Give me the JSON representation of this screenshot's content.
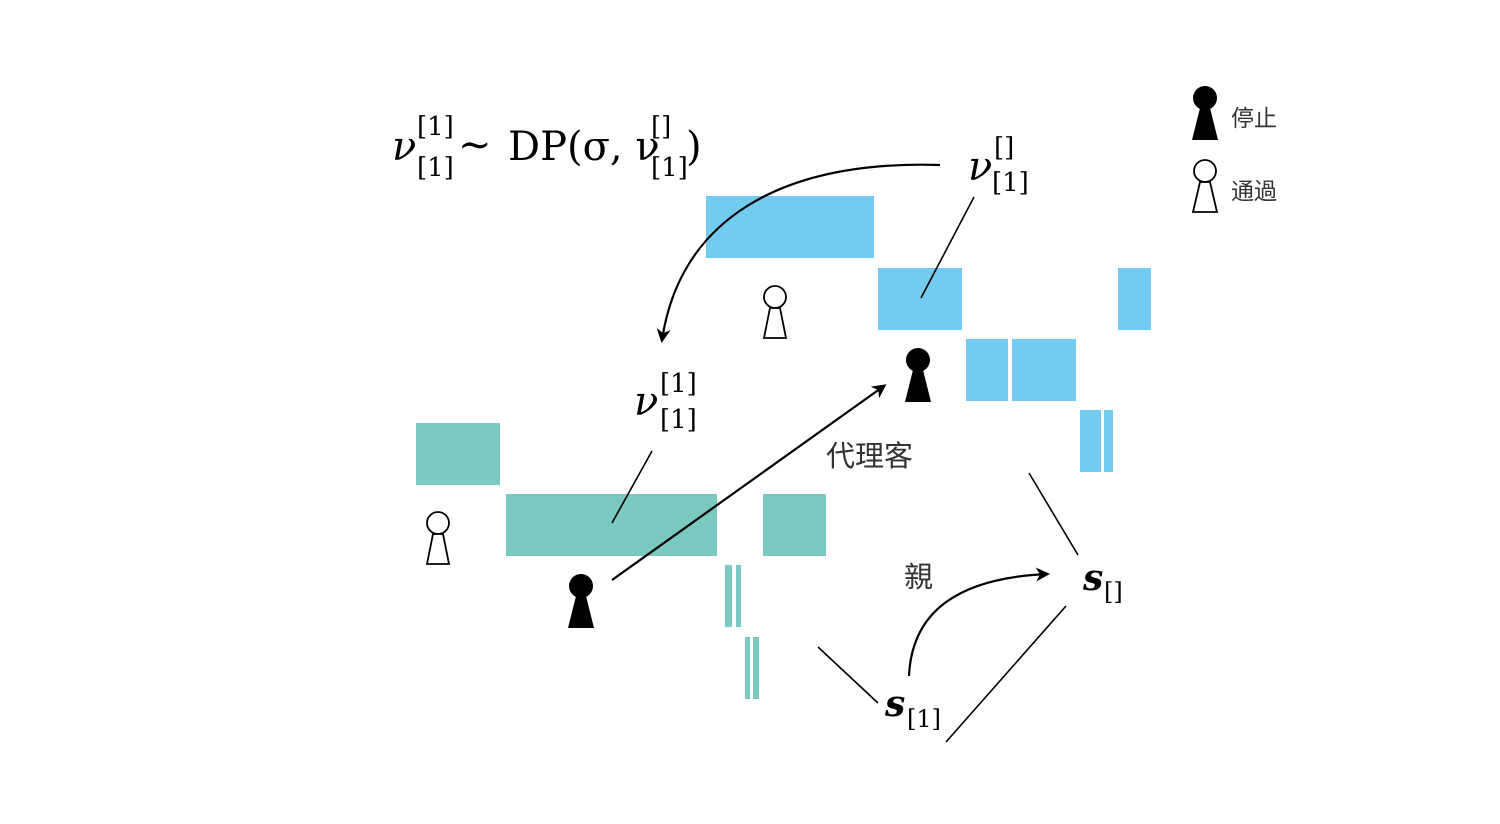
{
  "colors": {
    "blue": "#74CBF0",
    "teal": "#7AC9C0",
    "ink": "#000000"
  },
  "labels": {
    "formula_lhs_base": "ν",
    "formula_lhs_sup": "[1]",
    "formula_lhs_sub": "[1]",
    "formula_sim": "∼",
    "formula_dp": "DP(σ, ν",
    "formula_rhs_sup": "[]",
    "formula_rhs_sub": "[1]",
    "formula_close": ")",
    "nu_top_base": "ν",
    "nu_top_sup": "[]",
    "nu_top_sub": "[1]",
    "nu_mid_base": "ν",
    "nu_mid_sup": "[1]",
    "nu_mid_sub": "[1]",
    "proxy": "代理客",
    "parent": "親",
    "s_root_base": "s",
    "s_root_sub": "[]",
    "s_child_base": "s",
    "s_child_sub": "[1]"
  },
  "legend": {
    "stop_label": "停止",
    "pass_label": "通過",
    "stop_icon": "filled-keyhole-icon",
    "pass_icon": "outline-keyhole-icon"
  }
}
